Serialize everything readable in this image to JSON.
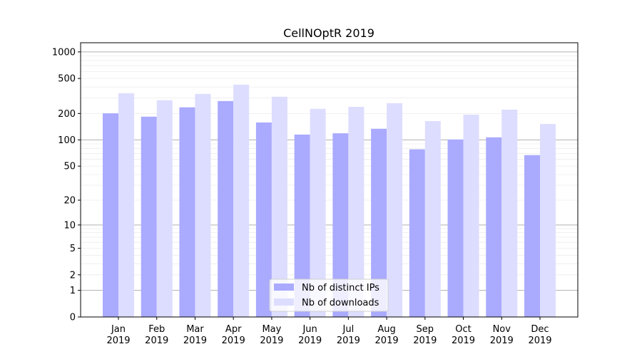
{
  "chart_data": {
    "type": "bar",
    "title": "CellNOptR 2019",
    "xlabel": "",
    "ylabel": "",
    "yscale": "log10(1+y)",
    "ylim": [
      0,
      1270
    ],
    "grid": true,
    "legend_position": "bottom-center",
    "categories": [
      "Jan\n2019",
      "Feb\n2019",
      "Mar\n2019",
      "Apr\n2019",
      "May\n2019",
      "Jun\n2019",
      "Jul\n2019",
      "Aug\n2019",
      "Sep\n2019",
      "Oct\n2019",
      "Nov\n2019",
      "Dec\n2019"
    ],
    "ytick_labels": [
      "0",
      "1",
      "2",
      "5",
      "10",
      "20",
      "50",
      "100",
      "200",
      "500",
      "1000"
    ],
    "ytick_values": [
      0,
      1,
      2,
      5,
      10,
      20,
      50,
      100,
      200,
      500,
      1000
    ],
    "series": [
      {
        "name": "Nb of distinct IPs",
        "color": "#aaaaff",
        "values": [
          201,
          184,
          235,
          277,
          158,
          115,
          119,
          134,
          78,
          101,
          107,
          67
        ]
      },
      {
        "name": "Nb of downloads",
        "color": "#ddddff",
        "values": [
          340,
          283,
          334,
          425,
          310,
          226,
          238,
          262,
          164,
          194,
          221,
          152
        ]
      }
    ]
  }
}
